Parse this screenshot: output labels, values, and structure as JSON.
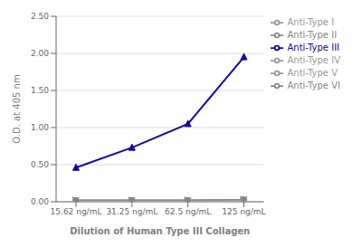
{
  "chart_data": {
    "type": "line",
    "categories": [
      "15.62 ng/mL",
      "31.25 ng/mL",
      "62.5 ng/mL",
      "125 ng/mL"
    ],
    "series": [
      {
        "name": "Anti-Type I",
        "color": "#999999",
        "marker": "triangle-right",
        "line_style": "solid",
        "values": [
          0.02,
          0.02,
          0.02,
          0.03
        ]
      },
      {
        "name": "Anti-Type II",
        "color": "#888888",
        "marker": "circle",
        "line_style": "solid",
        "values": [
          0.02,
          0.02,
          0.02,
          0.03
        ]
      },
      {
        "name": "Anti-Type III",
        "color": "#1a00aa",
        "marker": "triangle",
        "line_style": "solid",
        "values": [
          0.46,
          0.73,
          1.05,
          1.95
        ]
      },
      {
        "name": "Anti-Type IV",
        "color": "#999999",
        "marker": "triangle-right",
        "line_style": "solid",
        "values": [
          0.02,
          0.02,
          0.02,
          0.03
        ]
      },
      {
        "name": "Anti-Type V",
        "color": "#999999",
        "marker": "x",
        "line_style": "solid",
        "values": [
          0.02,
          0.02,
          0.02,
          0.03
        ]
      },
      {
        "name": "Anti-Type VI",
        "color": "#888888",
        "marker": "circle",
        "line_style": "solid",
        "values": [
          0.02,
          0.02,
          0.02,
          0.03
        ]
      }
    ],
    "xlabel": "Dilution of Human Type III Collagen",
    "ylabel": "O.D. at 405 nm",
    "ylim": [
      0.0,
      2.5
    ],
    "yticks": [
      {
        "value": 0.0,
        "label": "0.00"
      },
      {
        "value": 0.5,
        "label": "0.50"
      },
      {
        "value": 1.0,
        "label": "1.00"
      },
      {
        "value": 1.5,
        "label": "1.50"
      },
      {
        "value": 2.0,
        "label": "2.00"
      },
      {
        "value": 2.5,
        "label": "2.50"
      }
    ],
    "grid": true,
    "legend": "right"
  }
}
